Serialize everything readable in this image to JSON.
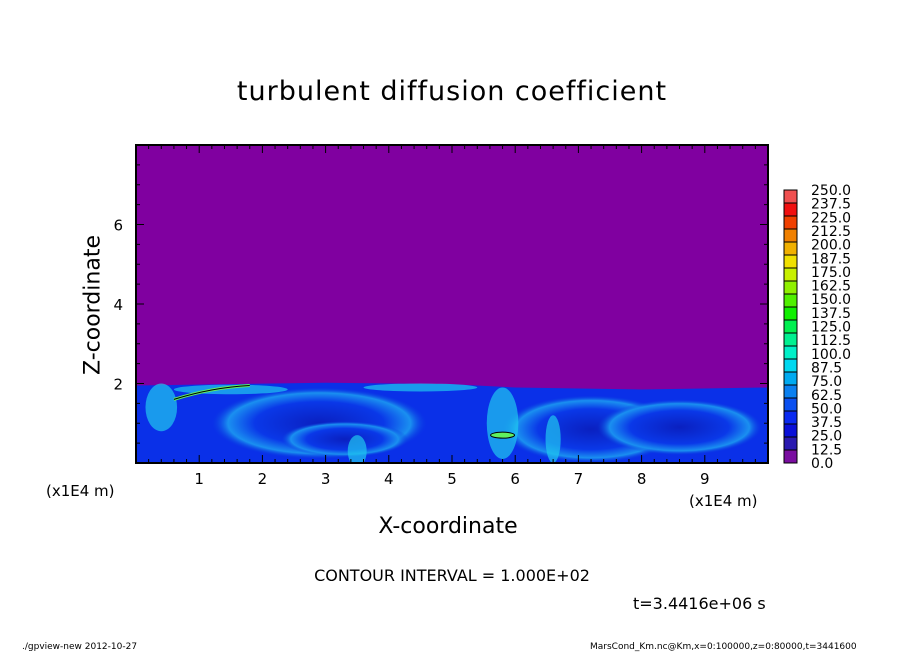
{
  "chart_data": {
    "type": "heatmap",
    "title": "turbulent diffusion coefficient",
    "xlabel": "X-coordinate",
    "ylabel": "Z-coordinate",
    "x_unit_label": "(x1E4 m)",
    "y_unit_label": "(x1E4 m)",
    "xlim": [
      0,
      10
    ],
    "ylim": [
      0,
      8
    ],
    "xticks": [
      "1",
      "2",
      "3",
      "4",
      "5",
      "6",
      "7",
      "8",
      "9"
    ],
    "yticks": [
      "2",
      "4",
      "6"
    ],
    "colorbar": {
      "levels": [
        "0.0",
        "12.5",
        "25.0",
        "37.5",
        "50.0",
        "62.5",
        "75.0",
        "87.5",
        "100.0",
        "112.5",
        "125.0",
        "137.5",
        "150.0",
        "162.5",
        "175.0",
        "187.5",
        "200.0",
        "212.5",
        "225.0",
        "237.5",
        "250.0"
      ],
      "colors": [
        "#7a0ea0",
        "#2a1ab0",
        "#0a10d8",
        "#0a2af0",
        "#0a50f0",
        "#0a80f0",
        "#00aaf0",
        "#00d8f0",
        "#00f0c8",
        "#00f090",
        "#00f050",
        "#10f000",
        "#50f000",
        "#90f000",
        "#c8f000",
        "#f0e000",
        "#f0b000",
        "#f08000",
        "#f04000",
        "#f01010",
        "#f05050",
        "#f08888"
      ]
    },
    "background_color": "#8000a0",
    "description_note": "",
    "contour_interval": "CONTOUR INTERVAL = 1.000E+02",
    "time_label": "t=3.4416e+06 s"
  },
  "footer": {
    "left": "./gpview-new   2012-10-27",
    "right": "MarsCond_Km.nc@Km,x=0:100000,z=0:80000,t=3441600"
  }
}
